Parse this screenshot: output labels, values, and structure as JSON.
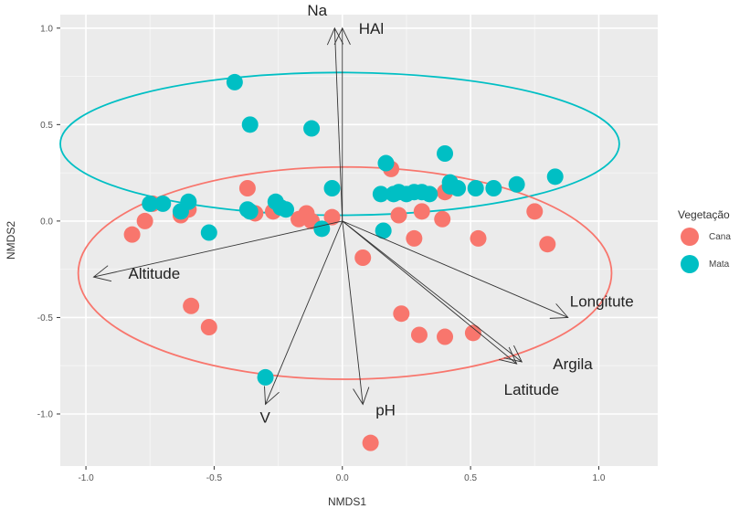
{
  "chart_data": {
    "type": "scatter",
    "xlabel": "NMDS1",
    "ylabel": "NMDS2",
    "xlim": [
      -1.1,
      1.23
    ],
    "ylim": [
      -1.27,
      1.07
    ],
    "x_ticks": [
      -1.0,
      -0.5,
      0.0,
      0.5,
      1.0
    ],
    "y_ticks": [
      -1.0,
      -0.5,
      0.0,
      0.5,
      1.0
    ],
    "x_tick_labels": [
      "-1.0",
      "-0.5",
      "0.0",
      "0.5",
      "1.0"
    ],
    "y_tick_labels": [
      "-1.0",
      "-0.5",
      "0.0",
      "0.5",
      "1.0"
    ],
    "grid": true,
    "legend": {
      "title": "Vegetação",
      "position": "right",
      "entries": [
        {
          "label": "Cana",
          "color": "#F8766D"
        },
        {
          "label": "Mata",
          "color": "#00BFC4"
        }
      ]
    },
    "series": [
      {
        "name": "Cana",
        "color": "#F8766D",
        "points": [
          [
            -0.82,
            -0.07
          ],
          [
            -0.77,
            0.0
          ],
          [
            -0.74,
            0.09
          ],
          [
            -0.63,
            0.03
          ],
          [
            -0.6,
            0.06
          ],
          [
            -0.59,
            -0.44
          ],
          [
            -0.52,
            -0.55
          ],
          [
            -0.37,
            0.17
          ],
          [
            -0.34,
            0.04
          ],
          [
            -0.27,
            0.05
          ],
          [
            -0.17,
            0.01
          ],
          [
            -0.14,
            0.04
          ],
          [
            -0.12,
            0.0
          ],
          [
            -0.04,
            0.02
          ],
          [
            0.08,
            -0.19
          ],
          [
            0.19,
            0.27
          ],
          [
            0.22,
            0.03
          ],
          [
            0.23,
            -0.48
          ],
          [
            0.28,
            -0.09
          ],
          [
            0.3,
            -0.59
          ],
          [
            0.31,
            0.05
          ],
          [
            0.39,
            0.01
          ],
          [
            0.4,
            -0.6
          ],
          [
            0.4,
            0.15
          ],
          [
            0.51,
            -0.58
          ],
          [
            0.53,
            -0.09
          ],
          [
            0.75,
            0.05
          ],
          [
            0.8,
            -0.12
          ],
          [
            0.11,
            -1.15
          ]
        ]
      },
      {
        "name": "Mata",
        "color": "#00BFC4",
        "points": [
          [
            -0.42,
            0.72
          ],
          [
            -0.36,
            0.5
          ],
          [
            -0.12,
            0.48
          ],
          [
            -0.75,
            0.09
          ],
          [
            -0.7,
            0.09
          ],
          [
            -0.63,
            0.05
          ],
          [
            -0.6,
            0.1
          ],
          [
            -0.52,
            -0.06
          ],
          [
            -0.37,
            0.06
          ],
          [
            -0.36,
            0.05
          ],
          [
            -0.26,
            0.1
          ],
          [
            -0.24,
            0.07
          ],
          [
            -0.22,
            0.06
          ],
          [
            -0.08,
            -0.04
          ],
          [
            -0.04,
            0.17
          ],
          [
            0.15,
            0.14
          ],
          [
            0.17,
            0.3
          ],
          [
            0.2,
            0.14
          ],
          [
            0.22,
            0.15
          ],
          [
            0.25,
            0.14
          ],
          [
            0.28,
            0.15
          ],
          [
            0.31,
            0.15
          ],
          [
            0.34,
            0.14
          ],
          [
            0.4,
            0.35
          ],
          [
            0.42,
            0.2
          ],
          [
            0.42,
            0.18
          ],
          [
            0.45,
            0.17
          ],
          [
            0.52,
            0.17
          ],
          [
            0.59,
            0.17
          ],
          [
            0.68,
            0.19
          ],
          [
            0.83,
            0.23
          ],
          [
            0.16,
            -0.05
          ],
          [
            -0.3,
            -0.81
          ]
        ]
      }
    ],
    "ellipses": [
      {
        "group": "Mata",
        "center": [
          -0.01,
          0.4
        ],
        "radii": [
          1.09,
          0.37
        ],
        "color": "#00BFC4"
      },
      {
        "group": "Cana",
        "center": [
          0.01,
          -0.27
        ],
        "radii": [
          1.04,
          0.55
        ],
        "color": "#F8766D"
      }
    ],
    "vectors": [
      {
        "label": "Na",
        "end": [
          -0.03,
          1.0
        ]
      },
      {
        "label": "HAl",
        "end": [
          0.0,
          1.0
        ]
      },
      {
        "label": "Altitude",
        "end": [
          -0.97,
          -0.29
        ]
      },
      {
        "label": "Longitute",
        "end": [
          0.88,
          -0.5
        ]
      },
      {
        "label": "Argila",
        "end": [
          0.7,
          -0.73
        ]
      },
      {
        "label": "Latitude",
        "end": [
          0.68,
          -0.74
        ]
      },
      {
        "label": "V",
        "end": [
          -0.3,
          -0.95
        ]
      },
      {
        "label": "pH",
        "end": [
          0.08,
          -0.95
        ]
      }
    ]
  }
}
